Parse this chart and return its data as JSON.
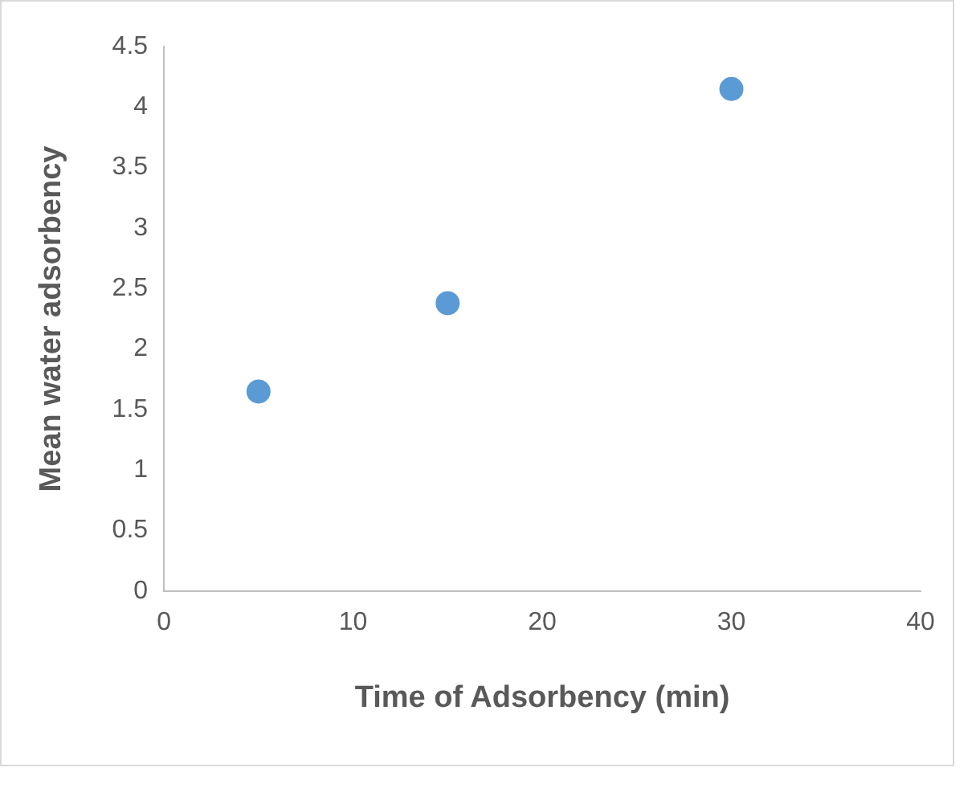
{
  "chart_data": {
    "type": "scatter",
    "xlabel": "Time of Adsorbency (min)",
    "ylabel": "Mean water adsorbency",
    "x": [
      5,
      15,
      30
    ],
    "series": [
      {
        "color": "#5b9bd5",
        "values": [
          1.65,
          2.38,
          4.15
        ]
      }
    ],
    "xlim": [
      0,
      40
    ],
    "xticks": [
      0,
      10,
      20,
      30,
      40
    ],
    "ylim": [
      0,
      4.5
    ],
    "yticks": [
      0,
      0.5,
      1,
      1.5,
      2,
      2.5,
      3,
      3.5,
      4,
      4.5
    ],
    "grid": false,
    "legend": false,
    "marker": "circle"
  }
}
